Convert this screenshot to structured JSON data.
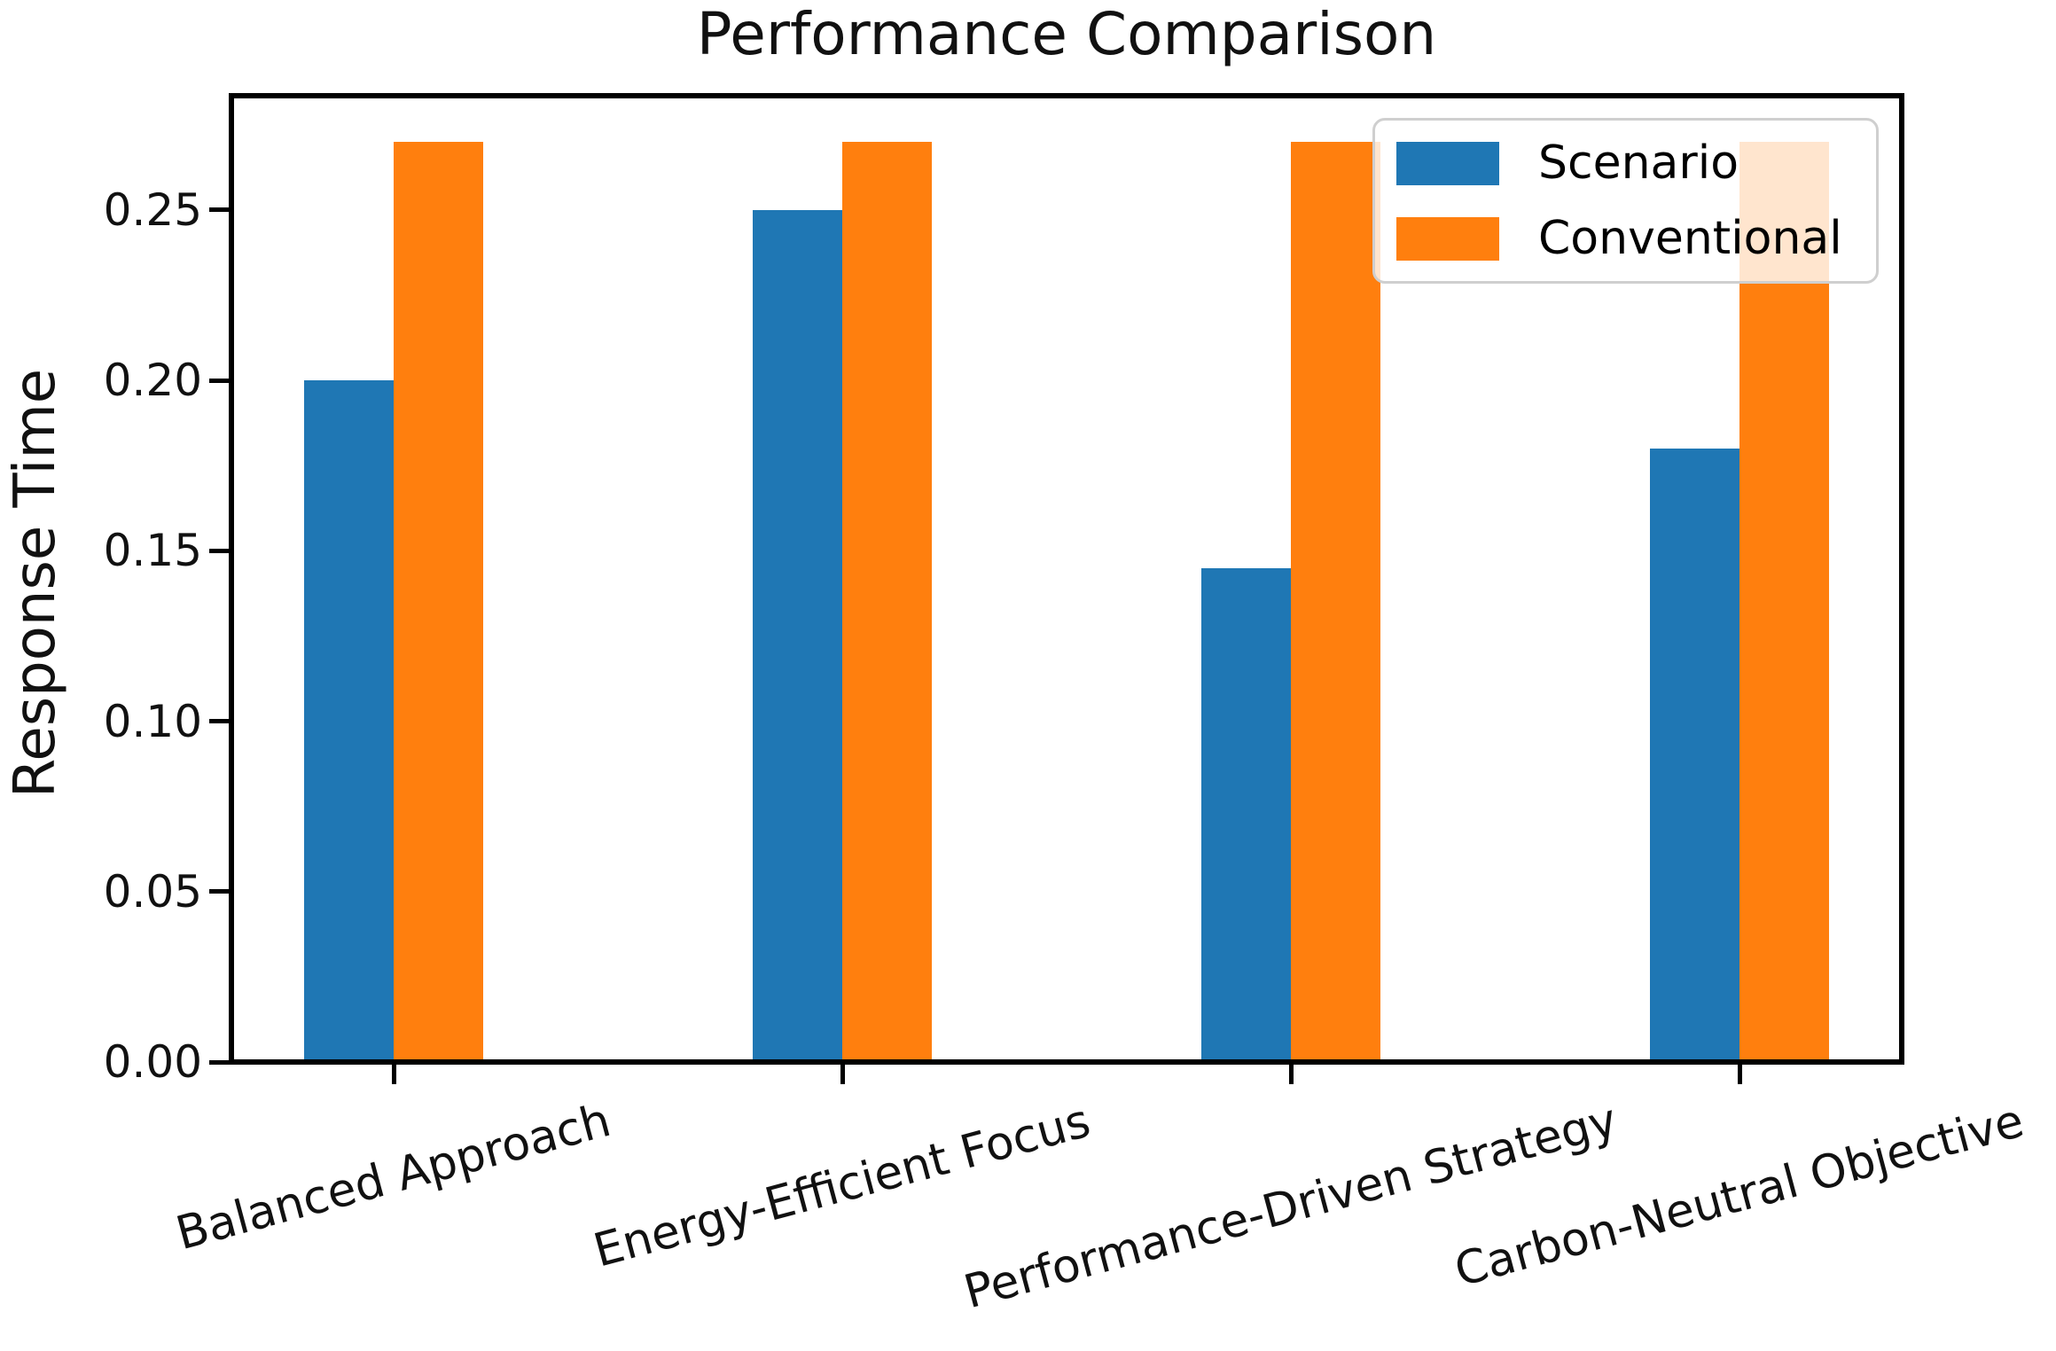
{
  "chart_data": {
    "type": "bar",
    "title": "Performance Comparison",
    "xlabel": "",
    "ylabel": "Response Time",
    "categories": [
      "Balanced Approach",
      "Energy-Efficient Focus",
      "Performance-Driven Strategy",
      "Carbon-Neutral Objective"
    ],
    "series": [
      {
        "name": "Scenario",
        "color": "#1f77b4",
        "values": [
          0.2,
          0.25,
          0.145,
          0.18
        ]
      },
      {
        "name": "Conventional",
        "color": "#ff7f0e",
        "values": [
          0.27,
          0.27,
          0.27,
          0.27
        ]
      }
    ],
    "ylim": [
      0,
      0.2835
    ],
    "yticks": [
      0.0,
      0.05,
      0.1,
      0.15,
      0.2,
      0.25
    ],
    "ytick_labels": [
      "0.00",
      "0.05",
      "0.10",
      "0.15",
      "0.20",
      "0.25"
    ],
    "grid": false,
    "legend_position": "upper right",
    "xtick_rotation_deg": 15,
    "colors": {
      "spine": "#000000",
      "text": "#111111",
      "legend_border": "#cfcfcf"
    }
  }
}
